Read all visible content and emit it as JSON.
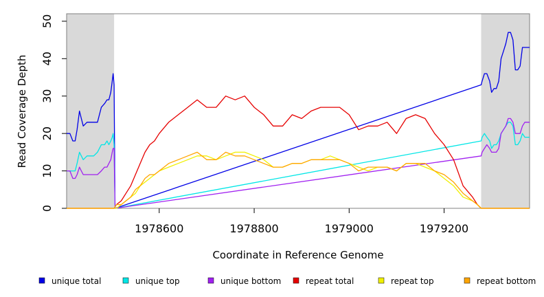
{
  "chart_data": {
    "type": "line",
    "title": "",
    "xlabel": "Coordinate in Reference Genome",
    "ylabel": "Read Coverage Depth",
    "xlim": [
      1978405,
      1979380
    ],
    "ylim": [
      0,
      52
    ],
    "xticks": [
      1978600,
      1978800,
      1979000,
      1979200
    ],
    "yticks": [
      0,
      10,
      20,
      30,
      40,
      50
    ],
    "shaded_regions": [
      [
        1978405,
        1978505
      ],
      [
        1979278,
        1979380
      ]
    ],
    "grid": false,
    "legend_position": "bottom",
    "series": [
      {
        "name": "unique total",
        "color": "#0000e6",
        "x": [
          1978405,
          1978412,
          1978418,
          1978423,
          1978427,
          1978432,
          1978436,
          1978440,
          1978448,
          1978452,
          1978462,
          1978470,
          1978478,
          1978485,
          1978490,
          1978494,
          1978498,
          1978501,
          1978503,
          1978505,
          1978507,
          1979278,
          1979280,
          1979285,
          1979290,
          1979296,
          1979300,
          1979305,
          1979310,
          1979315,
          1979320,
          1979325,
          1979330,
          1979335,
          1979340,
          1979345,
          1979350,
          1979355,
          1979360,
          1979365,
          1979370,
          1979375,
          1979380
        ],
        "y": [
          20,
          20,
          18,
          18,
          21,
          26,
          24,
          22,
          23,
          23,
          23,
          23,
          27,
          28,
          29,
          29,
          31,
          34,
          36,
          33,
          0,
          33,
          34,
          36,
          36,
          34,
          31,
          32,
          32,
          34,
          40,
          42,
          44,
          47,
          47,
          45,
          37,
          37,
          38,
          43,
          43,
          43,
          43
        ]
      },
      {
        "name": "unique top",
        "color": "#00e6e6",
        "x": [
          1978405,
          1978412,
          1978418,
          1978423,
          1978427,
          1978432,
          1978436,
          1978440,
          1978448,
          1978452,
          1978462,
          1978470,
          1978478,
          1978485,
          1978490,
          1978494,
          1978498,
          1978501,
          1978503,
          1978505,
          1978507,
          1979278,
          1979280,
          1979285,
          1979290,
          1979296,
          1979300,
          1979305,
          1979310,
          1979315,
          1979320,
          1979325,
          1979330,
          1979335,
          1979340,
          1979345,
          1979350,
          1979355,
          1979360,
          1979365,
          1979370,
          1979375,
          1979380
        ],
        "y": [
          10,
          10,
          10,
          10,
          12,
          15,
          14,
          13,
          14,
          14,
          14,
          15,
          17,
          17,
          18,
          17,
          18,
          19,
          20,
          17,
          0,
          18,
          19,
          20,
          19,
          18,
          16,
          17,
          17,
          18,
          20,
          21,
          22,
          23,
          23,
          22,
          17,
          17,
          18,
          20,
          19,
          19,
          19
        ]
      },
      {
        "name": "unique bottom",
        "color": "#a020f0",
        "x": [
          1978405,
          1978412,
          1978418,
          1978423,
          1978427,
          1978432,
          1978436,
          1978440,
          1978448,
          1978452,
          1978462,
          1978470,
          1978478,
          1978485,
          1978490,
          1978494,
          1978498,
          1978501,
          1978503,
          1978505,
          1978507,
          1979278,
          1979280,
          1979285,
          1979290,
          1979296,
          1979300,
          1979305,
          1979310,
          1979315,
          1979320,
          1979325,
          1979330,
          1979335,
          1979340,
          1979345,
          1979350,
          1979355,
          1979360,
          1979365,
          1979370,
          1979375,
          1979380
        ],
        "y": [
          10,
          10,
          8,
          8,
          9,
          11,
          10,
          9,
          9,
          9,
          9,
          9,
          10,
          11,
          11,
          12,
          13,
          15,
          16,
          16,
          0,
          14,
          15,
          16,
          17,
          16,
          15,
          15,
          15,
          16,
          20,
          21,
          22,
          24,
          24,
          23,
          20,
          20,
          20,
          22,
          23,
          23,
          23
        ]
      },
      {
        "name": "repeat total",
        "color": "#e60000",
        "x": [
          1978405,
          1978505,
          1978510,
          1978520,
          1978530,
          1978540,
          1978550,
          1978560,
          1978570,
          1978580,
          1978590,
          1978600,
          1978620,
          1978640,
          1978660,
          1978680,
          1978700,
          1978720,
          1978740,
          1978760,
          1978780,
          1978800,
          1978820,
          1978840,
          1978860,
          1978880,
          1978900,
          1978920,
          1978940,
          1978960,
          1978980,
          1979000,
          1979020,
          1979040,
          1979060,
          1979080,
          1979100,
          1979120,
          1979140,
          1979160,
          1979180,
          1979200,
          1979220,
          1979240,
          1979260,
          1979270,
          1979278,
          1979380
        ],
        "y": [
          0,
          0,
          1,
          2,
          4,
          6,
          9,
          12,
          15,
          17,
          18,
          20,
          23,
          25,
          27,
          29,
          27,
          27,
          30,
          29,
          30,
          27,
          25,
          22,
          22,
          25,
          24,
          26,
          27,
          27,
          27,
          25,
          21,
          22,
          22,
          23,
          20,
          24,
          25,
          24,
          20,
          17,
          13,
          6,
          3,
          1,
          0,
          0
        ]
      },
      {
        "name": "repeat top",
        "color": "#f0f000",
        "x": [
          1978405,
          1978505,
          1978510,
          1978520,
          1978530,
          1978540,
          1978550,
          1978560,
          1978570,
          1978580,
          1978590,
          1978600,
          1978620,
          1978640,
          1978660,
          1978680,
          1978700,
          1978720,
          1978740,
          1978760,
          1978780,
          1978800,
          1978820,
          1978840,
          1978860,
          1978880,
          1978900,
          1978920,
          1978940,
          1978960,
          1978980,
          1979000,
          1979020,
          1979040,
          1979060,
          1979080,
          1979100,
          1979120,
          1979140,
          1979160,
          1979180,
          1979200,
          1979220,
          1979240,
          1979260,
          1979270,
          1979278,
          1979380
        ],
        "y": [
          0,
          0,
          0,
          1,
          2,
          3,
          4,
          6,
          7,
          8,
          9,
          10,
          11,
          12,
          13,
          14,
          14,
          13,
          14,
          15,
          15,
          14,
          13,
          11,
          11,
          12,
          12,
          13,
          13,
          14,
          13,
          12,
          11,
          10,
          11,
          11,
          10,
          12,
          12,
          11,
          10,
          8,
          6,
          3,
          2,
          1,
          0,
          0
        ]
      },
      {
        "name": "repeat bottom",
        "color": "#ffa500",
        "x": [
          1978405,
          1978505,
          1978510,
          1978520,
          1978530,
          1978540,
          1978550,
          1978560,
          1978570,
          1978580,
          1978590,
          1978600,
          1978620,
          1978640,
          1978660,
          1978680,
          1978700,
          1978720,
          1978740,
          1978760,
          1978780,
          1978800,
          1978820,
          1978840,
          1978860,
          1978880,
          1978900,
          1978920,
          1978940,
          1978960,
          1978980,
          1979000,
          1979020,
          1979040,
          1979060,
          1979080,
          1979100,
          1979120,
          1979140,
          1979160,
          1979180,
          1979200,
          1979220,
          1979240,
          1979260,
          1979270,
          1979278,
          1979380
        ],
        "y": [
          0,
          0,
          1,
          1,
          2,
          3,
          5,
          6,
          8,
          9,
          9,
          10,
          12,
          13,
          14,
          15,
          13,
          13,
          15,
          14,
          14,
          13,
          12,
          11,
          11,
          12,
          12,
          13,
          13,
          13,
          13,
          12,
          10,
          11,
          11,
          11,
          10,
          12,
          12,
          12,
          10,
          9,
          7,
          4,
          2,
          1,
          0,
          0
        ]
      }
    ]
  }
}
